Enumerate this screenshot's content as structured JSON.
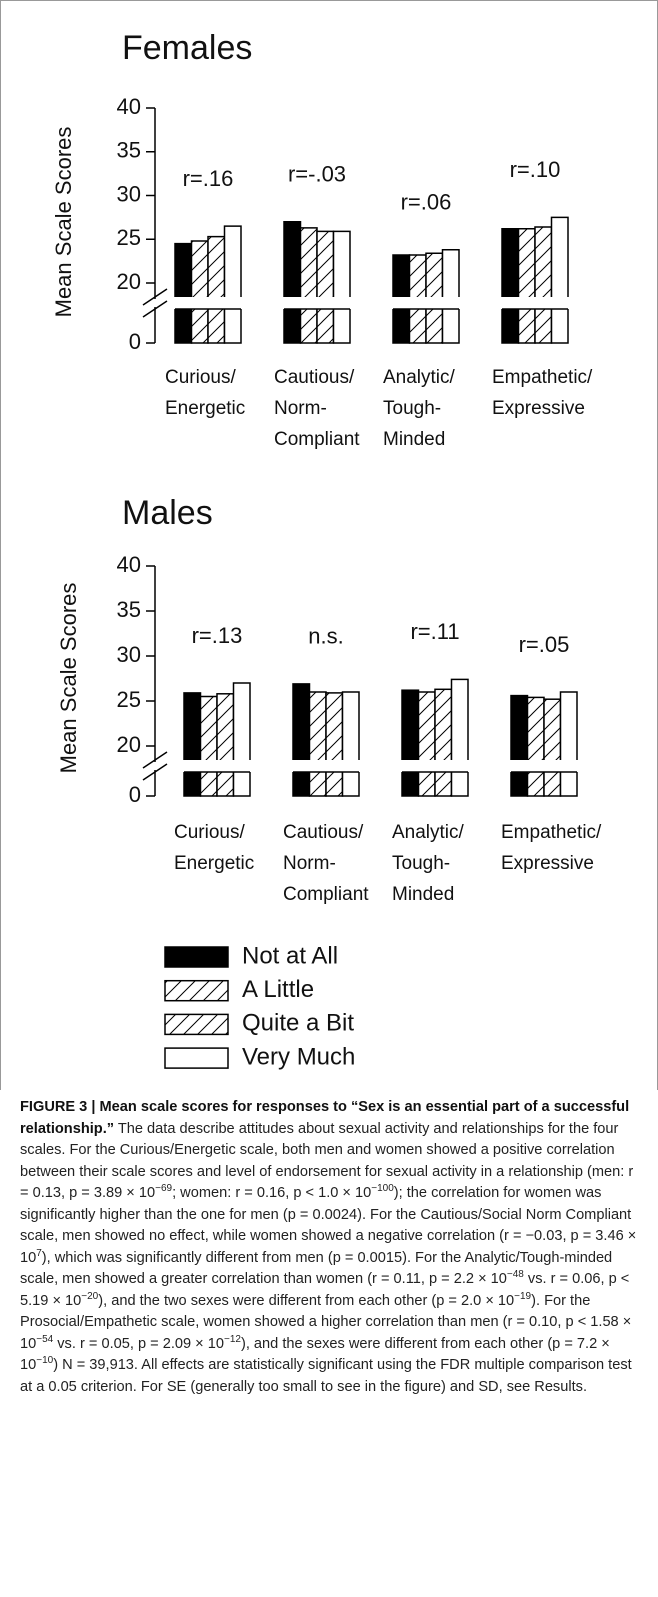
{
  "chart_data": [
    {
      "type": "bar",
      "title": "Females",
      "ylabel": "Mean Scale Scores",
      "categories": [
        "Curious/\nEnergetic",
        "Cautious/\nNorm-\nCompliant",
        "Analytic/\nTough-\nMinded",
        "Empathetic/\nExpressive"
      ],
      "annotations": [
        "r=.16",
        "r=-.03",
        "r=.06",
        "r=.10"
      ],
      "series": [
        {
          "name": "Not at All",
          "color": "#000000",
          "hatch": false,
          "values": [
            24.5,
            27.0,
            23.2,
            26.2
          ]
        },
        {
          "name": "A Little",
          "color": "#ffffff",
          "hatch": true,
          "values": [
            24.8,
            26.3,
            23.2,
            26.2
          ]
        },
        {
          "name": "Quite a Bit",
          "color": "#ffffff",
          "hatch": true,
          "values": [
            25.3,
            25.9,
            23.4,
            26.4
          ]
        },
        {
          "name": "Very Much",
          "color": "#ffffff",
          "hatch": false,
          "values": [
            26.5,
            25.9,
            23.8,
            27.5
          ]
        }
      ],
      "ylim": [
        0,
        40
      ],
      "yticks": [
        0,
        20,
        25,
        30,
        35,
        40
      ],
      "broken_axis": true
    },
    {
      "type": "bar",
      "title": "Males",
      "ylabel": "Mean Scale Scores",
      "categories": [
        "Curious/\nEnergetic",
        "Cautious/\nNorm-\nCompliant",
        "Analytic/\nTough-\nMinded",
        "Empathetic/\nExpressive"
      ],
      "annotations": [
        "r=.13",
        "n.s.",
        "r=.11",
        "r=.05"
      ],
      "series": [
        {
          "name": "Not at All",
          "color": "#000000",
          "hatch": false,
          "values": [
            25.9,
            26.9,
            26.2,
            25.6
          ]
        },
        {
          "name": "A Little",
          "color": "#ffffff",
          "hatch": true,
          "values": [
            25.5,
            26.0,
            26.0,
            25.4
          ]
        },
        {
          "name": "Quite a Bit",
          "color": "#ffffff",
          "hatch": true,
          "values": [
            25.8,
            25.9,
            26.3,
            25.2
          ]
        },
        {
          "name": "Very Much",
          "color": "#ffffff",
          "hatch": false,
          "values": [
            27.0,
            26.0,
            27.4,
            26.0
          ]
        }
      ],
      "ylim": [
        0,
        40
      ],
      "yticks": [
        0,
        20,
        25,
        30,
        35,
        40
      ],
      "broken_axis": true
    }
  ],
  "caption": {
    "title": "FIGURE 3 | Mean scale scores for responses to “Sex is an essential part of a successful relationship.”",
    "body": [
      " The data describe attitudes about sexual activity and relationships for the four scales. For the Curious/Energetic scale, both men and women showed a positive correlation between their scale scores and level of endorsement for sexual activity in a relationship (men: r = 0.13, p = 3.89 × 10",
      "−69",
      "; women: r = 0.16, p < 1.0 × 10",
      "−100",
      "); the correlation for women was significantly higher than the one for men (p = 0.0024). For the Cautious/Social Norm Compliant scale, men showed no effect, while women showed a negative correlation (r = −0.03, p = 3.46 × 10",
      "7",
      "), which was significantly different from men (p = 0.0015). For the Analytic/Tough-minded scale, men showed a greater correlation than women (r = 0.11, p = 2.2 × 10",
      "−48",
      " vs. r = 0.06, p < 5.19 × 10",
      "−20",
      "), and the two sexes were different from each other (p = 2.0 × 10",
      "−19",
      "). For the Prosocial/Empathetic scale, women showed a higher correlation than men (r = 0.10, p < 1.58 × 10",
      "−54",
      " vs. r = 0.05, p = 2.09 × 10",
      "−12",
      "), and the sexes were different from each other (p = 7.2 × 10",
      "−10",
      ") N = 39,913. All effects are statistically significant using the FDR multiple comparison test at a 0.05 criterion. For SE (generally too small to see in the figure) and SD, see Results."
    ]
  }
}
